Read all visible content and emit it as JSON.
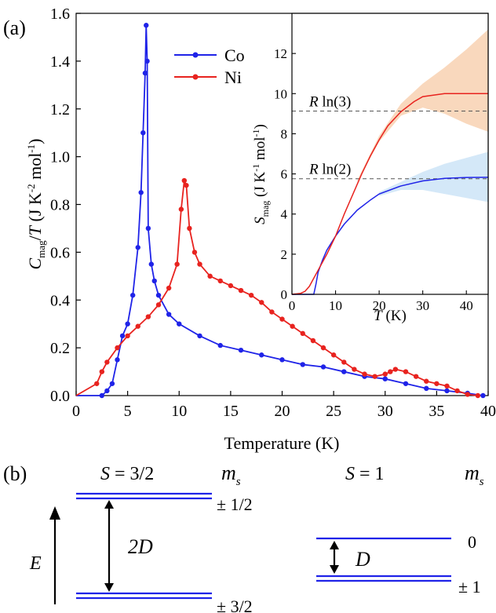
{
  "panel_a_label": "(a)",
  "panel_b_label": "(b)",
  "main_ylabel": "C_mag/T (J K^-2 mol^-1)",
  "inset_ylabel": "S_mag (J K^-1 mol^-1)",
  "colors": {
    "co": "#1f23e8",
    "ni": "#e8231f",
    "co_band": "#cfe6f7",
    "ni_band": "#f8d4b6",
    "axis": "#000000"
  },
  "chart_data": [
    {
      "type": "line",
      "xlabel": "Temperature (K)",
      "ylabel": "C_mag/T (J K^-2 mol^-1)",
      "xlim": [
        0,
        40
      ],
      "ylim": [
        0,
        1.6
      ],
      "xticks": [
        "0",
        "5",
        "10",
        "15",
        "20",
        "25",
        "30",
        "35",
        "40"
      ],
      "yticks": [
        "0.0",
        "0.2",
        "0.4",
        "0.6",
        "0.8",
        "1.0",
        "1.2",
        "1.4",
        "1.6"
      ],
      "legend": "top-center",
      "series": [
        {
          "name": "Co",
          "color": "#1f23e8",
          "points": [
            [
              0,
              0
            ],
            [
              2.5,
              0.0
            ],
            [
              3,
              0.02
            ],
            [
              3.5,
              0.05
            ],
            [
              4,
              0.15
            ],
            [
              4.5,
              0.25
            ],
            [
              5,
              0.3
            ],
            [
              5.5,
              0.42
            ],
            [
              6,
              0.62
            ],
            [
              6.3,
              0.85
            ],
            [
              6.5,
              1.1
            ],
            [
              6.7,
              1.35
            ],
            [
              6.8,
              1.55
            ],
            [
              6.9,
              1.4
            ],
            [
              7,
              0.7
            ],
            [
              7.3,
              0.55
            ],
            [
              7.6,
              0.48
            ],
            [
              8,
              0.42
            ],
            [
              9,
              0.34
            ],
            [
              10,
              0.3
            ],
            [
              12,
              0.25
            ],
            [
              14,
              0.21
            ],
            [
              16,
              0.19
            ],
            [
              18,
              0.17
            ],
            [
              20,
              0.15
            ],
            [
              22,
              0.13
            ],
            [
              24,
              0.12
            ],
            [
              26,
              0.1
            ],
            [
              28,
              0.08
            ],
            [
              30,
              0.07
            ],
            [
              32,
              0.05
            ],
            [
              34,
              0.03
            ],
            [
              36,
              0.02
            ],
            [
              38,
              0.01
            ],
            [
              39.5,
              0.0
            ]
          ]
        },
        {
          "name": "Ni",
          "color": "#e8231f",
          "points": [
            [
              0,
              0
            ],
            [
              2,
              0.05
            ],
            [
              2.5,
              0.1
            ],
            [
              3,
              0.14
            ],
            [
              4,
              0.2
            ],
            [
              5,
              0.25
            ],
            [
              6,
              0.29
            ],
            [
              7,
              0.33
            ],
            [
              8,
              0.38
            ],
            [
              9,
              0.45
            ],
            [
              9.8,
              0.55
            ],
            [
              10.2,
              0.78
            ],
            [
              10.5,
              0.9
            ],
            [
              10.7,
              0.88
            ],
            [
              11,
              0.7
            ],
            [
              11.5,
              0.6
            ],
            [
              12,
              0.55
            ],
            [
              13,
              0.5
            ],
            [
              14,
              0.48
            ],
            [
              15,
              0.46
            ],
            [
              16,
              0.44
            ],
            [
              17,
              0.42
            ],
            [
              18,
              0.39
            ],
            [
              19,
              0.35
            ],
            [
              20,
              0.32
            ],
            [
              21,
              0.29
            ],
            [
              22,
              0.26
            ],
            [
              23,
              0.23
            ],
            [
              24,
              0.2
            ],
            [
              25,
              0.17
            ],
            [
              26,
              0.14
            ],
            [
              27,
              0.11
            ],
            [
              28,
              0.09
            ],
            [
              29,
              0.08
            ],
            [
              30,
              0.09
            ],
            [
              30.5,
              0.1
            ],
            [
              31,
              0.11
            ],
            [
              32,
              0.1
            ],
            [
              33,
              0.08
            ],
            [
              34,
              0.06
            ],
            [
              35,
              0.05
            ],
            [
              36,
              0.04
            ],
            [
              37,
              0.02
            ],
            [
              38,
              0.005
            ],
            [
              39,
              0.0
            ]
          ]
        }
      ]
    },
    {
      "type": "line",
      "xlabel": "T (K)",
      "ylabel": "S_mag (J K^-1 mol^-1)",
      "xlim": [
        0,
        45
      ],
      "ylim": [
        0,
        14
      ],
      "xticks": [
        "0",
        "10",
        "20",
        "30",
        "40"
      ],
      "yticks": [
        "0",
        "2",
        "4",
        "6",
        "8",
        "10",
        "12"
      ],
      "reference_lines": [
        {
          "label": "R ln(3)",
          "y": 9.13
        },
        {
          "label": "R ln(2)",
          "y": 5.76
        }
      ],
      "series": [
        {
          "name": "Co",
          "color": "#1f23e8",
          "points": [
            [
              0,
              0
            ],
            [
              5,
              0
            ],
            [
              5.5,
              0.5
            ],
            [
              6,
              1.1
            ],
            [
              7,
              1.7
            ],
            [
              8,
              2.2
            ],
            [
              10,
              2.9
            ],
            [
              12,
              3.5
            ],
            [
              15,
              4.2
            ],
            [
              18,
              4.7
            ],
            [
              20,
              5.0
            ],
            [
              25,
              5.4
            ],
            [
              30,
              5.65
            ],
            [
              35,
              5.78
            ],
            [
              40,
              5.82
            ],
            [
              45,
              5.83
            ]
          ],
          "band_lower": [
            [
              20,
              4.9
            ],
            [
              25,
              5.2
            ],
            [
              30,
              5.2
            ],
            [
              35,
              5.0
            ],
            [
              40,
              4.8
            ],
            [
              45,
              4.6
            ]
          ],
          "band_upper": [
            [
              20,
              5.1
            ],
            [
              25,
              5.6
            ],
            [
              30,
              6.1
            ],
            [
              35,
              6.5
            ],
            [
              40,
              6.8
            ],
            [
              45,
              7.1
            ]
          ]
        },
        {
          "name": "Ni",
          "color": "#e8231f",
          "points": [
            [
              0,
              0
            ],
            [
              2,
              0.05
            ],
            [
              3,
              0.15
            ],
            [
              4,
              0.4
            ],
            [
              5,
              0.8
            ],
            [
              6,
              1.2
            ],
            [
              8,
              2.0
            ],
            [
              10,
              2.9
            ],
            [
              12,
              4.0
            ],
            [
              14,
              5.0
            ],
            [
              16,
              6.0
            ],
            [
              18,
              6.9
            ],
            [
              20,
              7.7
            ],
            [
              22,
              8.4
            ],
            [
              25,
              9.1
            ],
            [
              28,
              9.6
            ],
            [
              30,
              9.85
            ],
            [
              35,
              10.0
            ],
            [
              40,
              10.0
            ],
            [
              45,
              10.0
            ]
          ],
          "band_lower": [
            [
              15,
              5.6
            ],
            [
              20,
              7.6
            ],
            [
              25,
              8.9
            ],
            [
              30,
              9.3
            ],
            [
              35,
              9.0
            ],
            [
              40,
              8.5
            ],
            [
              45,
              8.1
            ]
          ],
          "band_upper": [
            [
              15,
              5.7
            ],
            [
              20,
              7.9
            ],
            [
              25,
              9.5
            ],
            [
              30,
              10.5
            ],
            [
              35,
              11.3
            ],
            [
              40,
              12.2
            ],
            [
              45,
              13.2
            ]
          ]
        }
      ]
    }
  ],
  "panel_b": {
    "co": {
      "spin_label": "S = 3/2",
      "ms_label": "m_s",
      "upper_level": "± 1/2",
      "lower_level": "± 3/2",
      "gap_label": "2D"
    },
    "ni": {
      "spin_label": "S = 1",
      "ms_label": "m_s",
      "upper_level": "0",
      "lower_level": "± 1",
      "gap_label": "D"
    },
    "energy_label": "E"
  }
}
